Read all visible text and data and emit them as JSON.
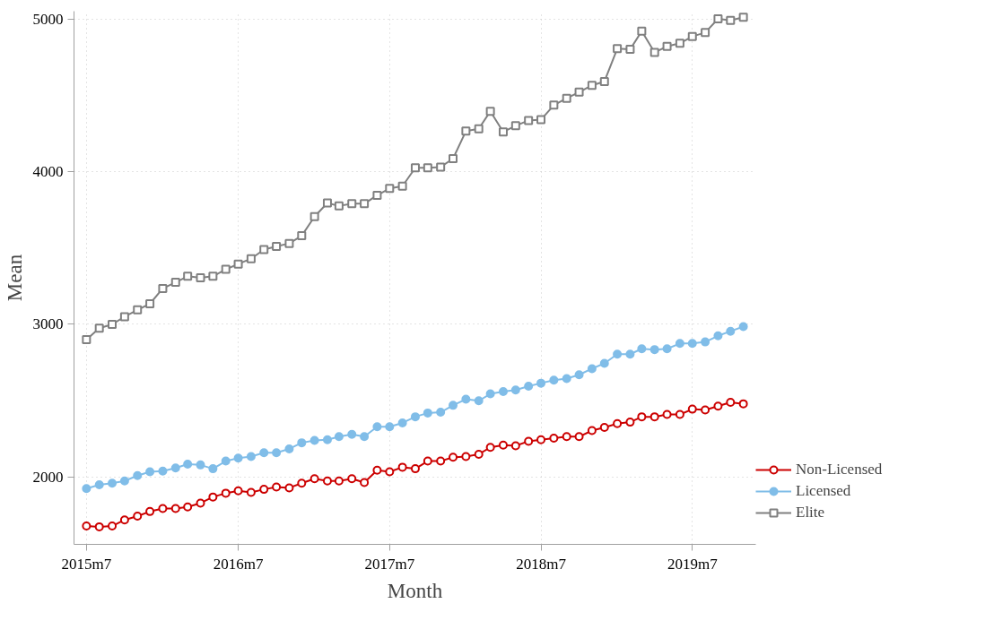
{
  "chart_data": {
    "type": "line",
    "xlabel": "Month",
    "ylabel": "Mean",
    "x": [
      "2015-07",
      "2015-08",
      "2015-09",
      "2015-10",
      "2015-11",
      "2015-12",
      "2016-01",
      "2016-02",
      "2016-03",
      "2016-04",
      "2016-05",
      "2016-06",
      "2016-07",
      "2016-08",
      "2016-09",
      "2016-10",
      "2016-11",
      "2016-12",
      "2017-01",
      "2017-02",
      "2017-03",
      "2017-04",
      "2017-05",
      "2017-06",
      "2017-07",
      "2017-08",
      "2017-09",
      "2017-10",
      "2017-11",
      "2017-12",
      "2018-01",
      "2018-02",
      "2018-03",
      "2018-04",
      "2018-05",
      "2018-06",
      "2018-07",
      "2018-08",
      "2018-09",
      "2018-10",
      "2018-11",
      "2018-12",
      "2019-01",
      "2019-02",
      "2019-03",
      "2019-04",
      "2019-05",
      "2019-06",
      "2019-07",
      "2019-08",
      "2019-09",
      "2019-10",
      "2019-11"
    ],
    "series": [
      {
        "name": "Non-Licensed",
        "color": "#cc0000",
        "marker": "circle",
        "values": [
          1680,
          1675,
          1680,
          1720,
          1745,
          1775,
          1795,
          1795,
          1805,
          1830,
          1870,
          1895,
          1910,
          1900,
          1920,
          1935,
          1930,
          1960,
          1990,
          1975,
          1975,
          1990,
          1965,
          2045,
          2035,
          2065,
          2055,
          2105,
          2105,
          2130,
          2135,
          2150,
          2195,
          2210,
          2205,
          2235,
          2245,
          2255,
          2265,
          2265,
          2305,
          2325,
          2350,
          2360,
          2395,
          2395,
          2410,
          2410,
          2445,
          2440,
          2465,
          2490,
          2480
        ]
      },
      {
        "name": "Licensed",
        "color": "#80bde8",
        "marker": "circle",
        "values": [
          1925,
          1950,
          1960,
          1975,
          2010,
          2035,
          2040,
          2060,
          2085,
          2080,
          2055,
          2105,
          2125,
          2135,
          2160,
          2160,
          2185,
          2225,
          2240,
          2245,
          2265,
          2280,
          2265,
          2330,
          2330,
          2355,
          2395,
          2420,
          2425,
          2470,
          2510,
          2500,
          2545,
          2560,
          2570,
          2595,
          2615,
          2635,
          2645,
          2670,
          2710,
          2745,
          2805,
          2805,
          2840,
          2835,
          2840,
          2875,
          2875,
          2885,
          2925,
          2955,
          2985
        ]
      },
      {
        "name": "Elite",
        "color": "#808080",
        "marker": "square",
        "values": [
          2900,
          2975,
          3000,
          3050,
          3095,
          3135,
          3235,
          3275,
          3315,
          3305,
          3315,
          3360,
          3395,
          3430,
          3490,
          3510,
          3530,
          3580,
          3705,
          3795,
          3775,
          3790,
          3790,
          3845,
          3890,
          3905,
          4025,
          4025,
          4030,
          4085,
          4265,
          4280,
          4395,
          4260,
          4300,
          4335,
          4340,
          4435,
          4480,
          4520,
          4565,
          4590,
          4805,
          4800,
          4920,
          4780,
          4820,
          4840,
          4885,
          4910,
          5000,
          4990,
          5010
        ]
      }
    ],
    "xlim": [
      "2015-06",
      "2019-12"
    ],
    "xticks": [
      {
        "value": "2015-07",
        "label": "2015m7"
      },
      {
        "value": "2016-07",
        "label": "2016m7"
      },
      {
        "value": "2017-07",
        "label": "2017m7"
      },
      {
        "value": "2018-07",
        "label": "2018m7"
      },
      {
        "value": "2019-07",
        "label": "2019m7"
      }
    ],
    "ylim": [
      1560,
      5050
    ],
    "yticks": [
      2000,
      3000,
      4000,
      5000
    ],
    "grid": true,
    "legend": "right",
    "line_style": "solid"
  }
}
